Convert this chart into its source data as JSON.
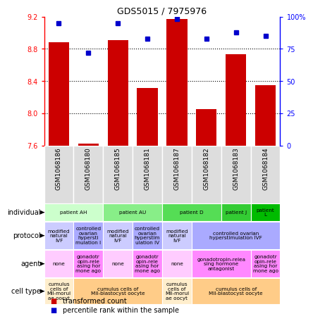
{
  "title": "GDS5015 / 7975976",
  "samples": [
    "GSM1068186",
    "GSM1068180",
    "GSM1068185",
    "GSM1068181",
    "GSM1068187",
    "GSM1068182",
    "GSM1068183",
    "GSM1068184"
  ],
  "bar_values": [
    8.88,
    7.62,
    8.91,
    8.31,
    9.17,
    8.05,
    8.73,
    8.35
  ],
  "pct_values": [
    95,
    72,
    95,
    83,
    98,
    83,
    88,
    85
  ],
  "ylim_left": [
    7.6,
    9.2
  ],
  "ylim_right": [
    0,
    100
  ],
  "yticks_left": [
    7.6,
    8.0,
    8.4,
    8.8,
    9.2
  ],
  "ytick_labels_right": [
    "0",
    "25",
    "50",
    "75",
    "100%"
  ],
  "yticks_right": [
    0,
    25,
    50,
    75,
    100
  ],
  "hlines": [
    8.0,
    8.4,
    8.8
  ],
  "bar_color": "#cc0000",
  "dot_color": "#0000cc",
  "bar_base": 7.6,
  "individual_row": {
    "label": "individual",
    "groups": [
      {
        "text": "patient AH",
        "cols": [
          0,
          1
        ],
        "color": "#ccffcc"
      },
      {
        "text": "patient AU",
        "cols": [
          2,
          3
        ],
        "color": "#88ee88"
      },
      {
        "text": "patient D",
        "cols": [
          4,
          5
        ],
        "color": "#55dd55"
      },
      {
        "text": "patient J",
        "cols": [
          6
        ],
        "color": "#33cc33"
      },
      {
        "text": "patient\nL",
        "cols": [
          7
        ],
        "color": "#00bb00"
      }
    ]
  },
  "protocol_row": {
    "label": "protocol",
    "groups": [
      {
        "text": "modified\nnatural\nIVF",
        "cols": [
          0
        ],
        "color": "#ccccff"
      },
      {
        "text": "controlled\novarian\nhypersti\nmulation I",
        "cols": [
          1
        ],
        "color": "#aaaaff"
      },
      {
        "text": "modified\nnatural\nIVF",
        "cols": [
          2
        ],
        "color": "#ccccff"
      },
      {
        "text": "controlled\novarian\nhyperstim\nulation IV",
        "cols": [
          3
        ],
        "color": "#aaaaff"
      },
      {
        "text": "modified\nnatural\nIVF",
        "cols": [
          4
        ],
        "color": "#ccccff"
      },
      {
        "text": "controlled ovarian\nhyperstimulation IVF",
        "cols": [
          5,
          6,
          7
        ],
        "color": "#aaaaff"
      }
    ]
  },
  "agent_row": {
    "label": "agent",
    "groups": [
      {
        "text": "none",
        "cols": [
          0
        ],
        "color": "#ffccff"
      },
      {
        "text": "gonadotr\nopin-rele\nasing hor\nmone ago",
        "cols": [
          1
        ],
        "color": "#ff88ff"
      },
      {
        "text": "none",
        "cols": [
          2
        ],
        "color": "#ffccff"
      },
      {
        "text": "gonadotr\nopin-rele\nasing hor\nmone ago",
        "cols": [
          3
        ],
        "color": "#ff88ff"
      },
      {
        "text": "none",
        "cols": [
          4
        ],
        "color": "#ffccff"
      },
      {
        "text": "gonadotropin-relea\nsing hormone\nantagonist",
        "cols": [
          5,
          6
        ],
        "color": "#ff88ff"
      },
      {
        "text": "gonadotr\nopin-rele\nasing hor\nmone ago",
        "cols": [
          7
        ],
        "color": "#ff88ff"
      }
    ]
  },
  "celltype_row": {
    "label": "cell type",
    "groups": [
      {
        "text": "cumulus\ncells of\nMII-morul\nae oocyt",
        "cols": [
          0
        ],
        "color": "#ffeecc"
      },
      {
        "text": "cumulus cells of\nMII-blastocyst oocyte",
        "cols": [
          1,
          2,
          3
        ],
        "color": "#ffcc88"
      },
      {
        "text": "cumulus\ncells of\nMII-morul\nae oocyt",
        "cols": [
          4
        ],
        "color": "#ffeecc"
      },
      {
        "text": "cumulus cells of\nMII-blastocyst oocyte",
        "cols": [
          5,
          6,
          7
        ],
        "color": "#ffcc88"
      }
    ]
  },
  "legend_items": [
    {
      "color": "#cc0000",
      "label": "transformed count"
    },
    {
      "color": "#0000cc",
      "label": "percentile rank within the sample"
    }
  ]
}
